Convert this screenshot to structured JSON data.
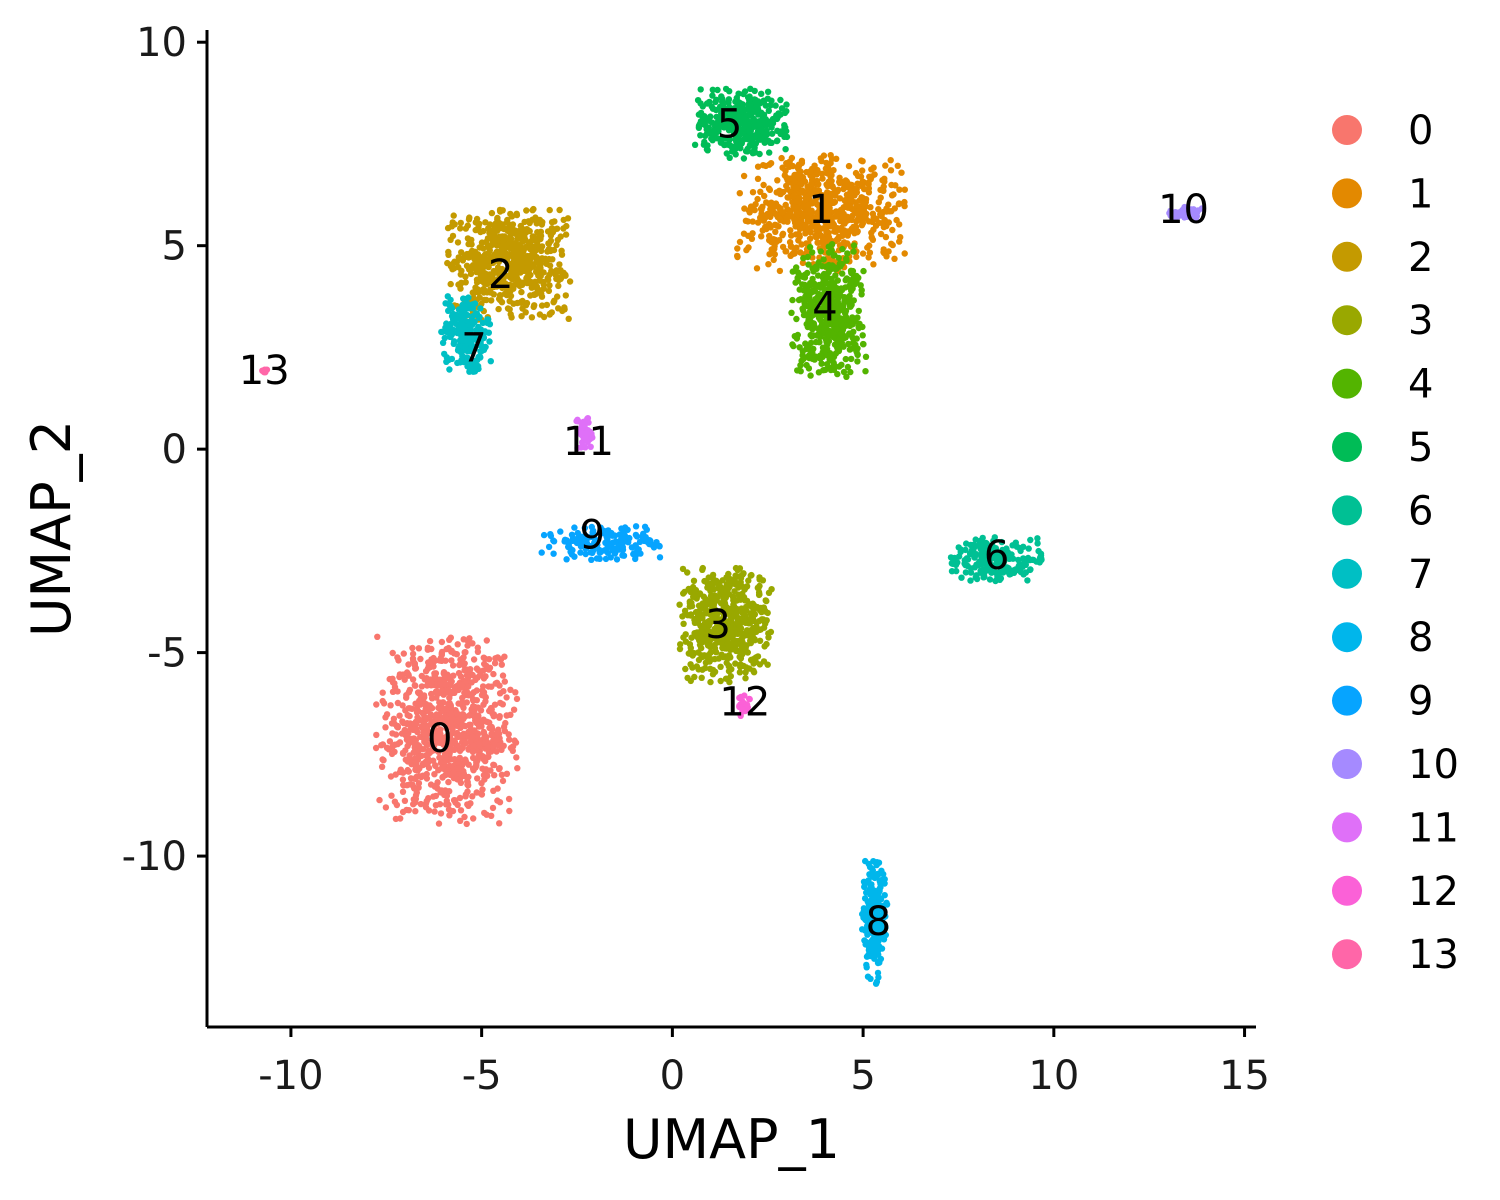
{
  "chart_data": {
    "type": "scatter",
    "xlabel": "UMAP_1",
    "ylabel": "UMAP_2",
    "xlim": [
      -12.2,
      15.3
    ],
    "ylim": [
      -14.2,
      10.3
    ],
    "x_ticks": [
      -10,
      -5,
      0,
      5,
      10,
      15
    ],
    "y_ticks": [
      -10,
      -5,
      0,
      5,
      10
    ],
    "grid": false,
    "legend_position": "right",
    "clusters": [
      {
        "name": "0",
        "color": "#F8766D",
        "label_x": -6.1,
        "label_y": -7.1,
        "cx": -5.9,
        "cy": -6.9,
        "rx": 1.7,
        "ry": 2.1,
        "n": 900
      },
      {
        "name": "1",
        "color": "#E38900",
        "label_x": 3.9,
        "label_y": 5.9,
        "cx": 3.9,
        "cy": 5.8,
        "rx": 2.0,
        "ry": 1.3,
        "n": 700
      },
      {
        "name": "2",
        "color": "#C49A00",
        "label_x": -4.5,
        "label_y": 4.3,
        "cx": -4.3,
        "cy": 4.6,
        "rx": 1.5,
        "ry": 1.3,
        "n": 600
      },
      {
        "name": "3",
        "color": "#99A800",
        "label_x": 1.2,
        "label_y": -4.3,
        "cx": 1.4,
        "cy": -4.3,
        "rx": 1.1,
        "ry": 1.3,
        "n": 550
      },
      {
        "name": "4",
        "color": "#53B400",
        "label_x": 4.0,
        "label_y": 3.5,
        "cx": 4.1,
        "cy": 3.4,
        "rx": 0.9,
        "ry": 1.5,
        "n": 450
      },
      {
        "name": "5",
        "color": "#00BC56",
        "label_x": 1.5,
        "label_y": 8.0,
        "cx": 1.8,
        "cy": 8.0,
        "rx": 1.1,
        "ry": 0.8,
        "n": 350
      },
      {
        "name": "6",
        "color": "#00C094",
        "label_x": 8.5,
        "label_y": -2.6,
        "cx": 8.5,
        "cy": -2.7,
        "rx": 1.1,
        "ry": 0.5,
        "n": 220
      },
      {
        "name": "7",
        "color": "#00BFC4",
        "label_x": -5.2,
        "label_y": 2.5,
        "cx": -5.4,
        "cy": 2.8,
        "rx": 0.6,
        "ry": 0.9,
        "n": 200
      },
      {
        "name": "8",
        "color": "#00B6EB",
        "label_x": 5.4,
        "label_y": -11.6,
        "cx": 5.3,
        "cy": -11.6,
        "rx": 0.3,
        "ry": 1.4,
        "n": 200
      },
      {
        "name": "9",
        "color": "#06A4FF",
        "label_x": -2.1,
        "label_y": -2.1,
        "cx": -1.8,
        "cy": -2.3,
        "rx": 1.5,
        "ry": 0.4,
        "n": 160
      },
      {
        "name": "10",
        "color": "#A58AFF",
        "label_x": 13.4,
        "label_y": 5.9,
        "cx": 13.5,
        "cy": 5.8,
        "rx": 0.5,
        "ry": 0.15,
        "n": 60
      },
      {
        "name": "11",
        "color": "#DF70F8",
        "label_x": -2.2,
        "label_y": 0.2,
        "cx": -2.3,
        "cy": 0.4,
        "rx": 0.2,
        "ry": 0.45,
        "n": 60
      },
      {
        "name": "12",
        "color": "#FB61D7",
        "label_x": 1.9,
        "label_y": -6.2,
        "cx": 1.9,
        "cy": -6.3,
        "rx": 0.15,
        "ry": 0.25,
        "n": 25
      },
      {
        "name": "13",
        "color": "#FF66A8",
        "label_x": -10.7,
        "label_y": 1.95,
        "cx": -10.7,
        "cy": 1.95,
        "rx": 0.12,
        "ry": 0.08,
        "n": 6
      }
    ]
  }
}
